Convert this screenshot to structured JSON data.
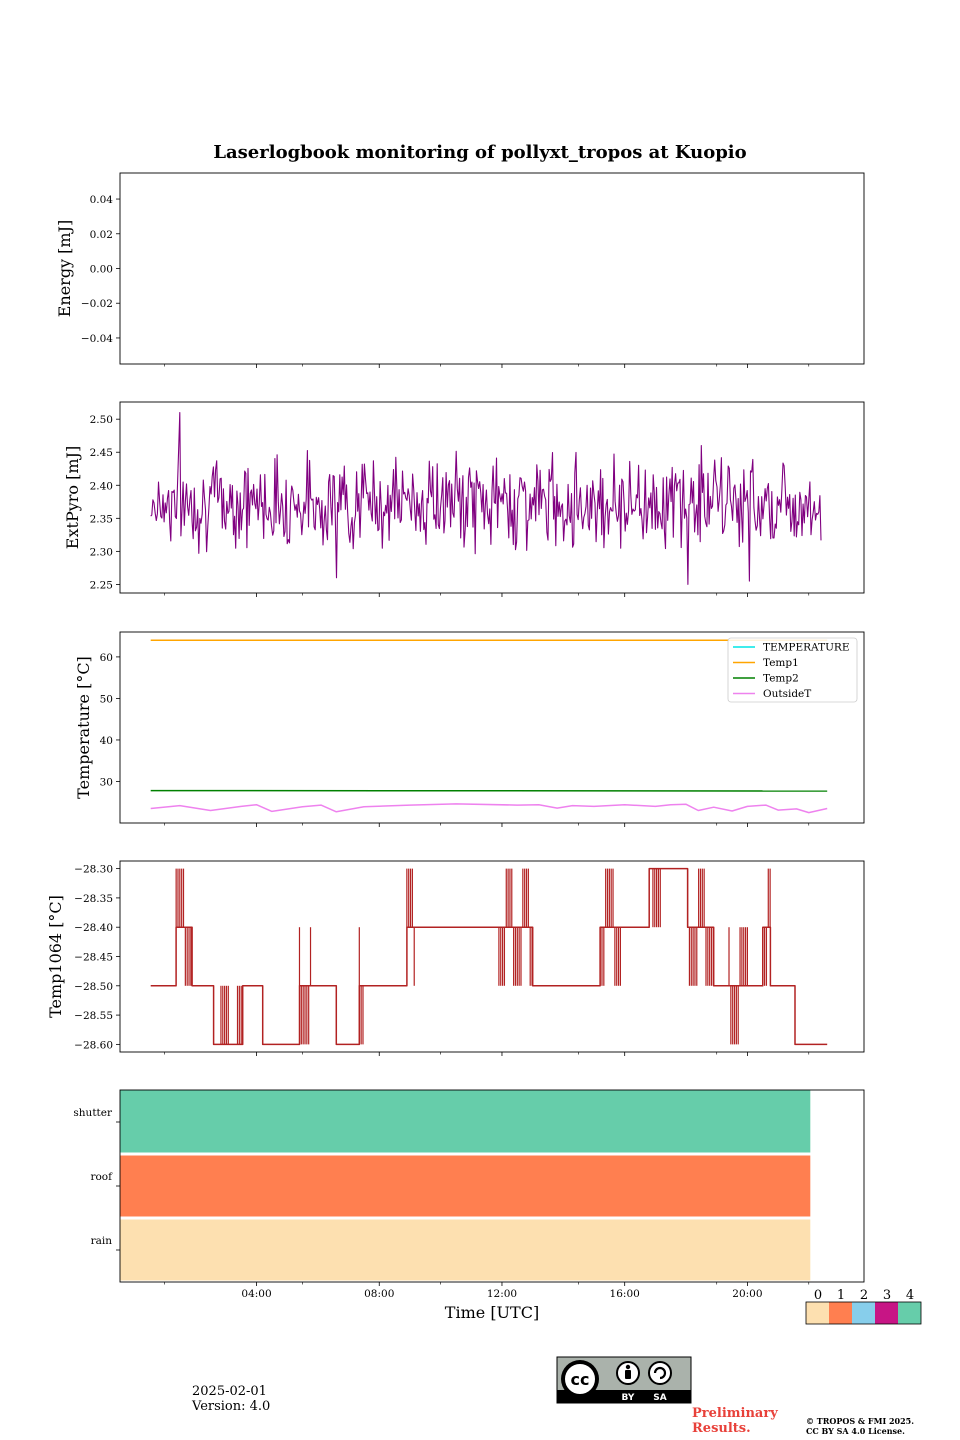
{
  "title": "Laserlogbook monitoring of pollyxt_tropos at Kuopio",
  "colors": {
    "extpyro": "#800080",
    "temperature": "#00e5e5",
    "temp1": "#ffa500",
    "temp2": "#008000",
    "outsideT": "#ee82ee",
    "temp1064": "#b22222",
    "status": [
      "#fde0b0",
      "#ff7f50",
      "#87ceeb",
      "#c71585",
      "#66cdaa"
    ]
  },
  "chart_data": [
    {
      "type": "line",
      "ylabel": "Energy [mJ]",
      "ylim": [
        -0.055,
        0.055
      ],
      "yticks": [
        0.04,
        0.02,
        0.0,
        -0.02,
        -0.04
      ],
      "ytick_labels": [
        "0.04",
        "0.02",
        "0.00",
        "−0.02",
        "−0.04"
      ],
      "series": []
    },
    {
      "type": "line",
      "ylabel": "ExtPyro [mJ]",
      "ylim": [
        2.237,
        2.526
      ],
      "yticks": [
        2.5,
        2.45,
        2.4,
        2.35,
        2.3,
        2.25
      ],
      "ytick_labels": [
        "2.50",
        "2.45",
        "2.40",
        "2.35",
        "2.30",
        "2.25"
      ],
      "x_range_hours": [
        0.55,
        22.4
      ],
      "series": [
        {
          "color_key": "extpyro",
          "mean": 2.375,
          "range": [
            2.25,
            2.51
          ],
          "samples": 600,
          "notable_points": [
            [
              1.5,
              2.51
            ],
            [
              18.05,
              2.25
            ],
            [
              6.6,
              2.26
            ],
            [
              18.5,
              2.46
            ],
            [
              20.05,
              2.255
            ]
          ]
        }
      ]
    },
    {
      "type": "line",
      "ylabel": "Temperature [°C]",
      "ylim": [
        20.0,
        66.0
      ],
      "yticks": [
        60,
        50,
        40,
        30
      ],
      "ytick_labels": [
        "60",
        "50",
        "40",
        "30"
      ],
      "x_range_hours": [
        0.55,
        22.6
      ],
      "legend": {
        "placement": "top-right",
        "entries": [
          {
            "label": "TEMPERATURE",
            "color_key": "temperature"
          },
          {
            "label": "Temp1",
            "color_key": "temp1"
          },
          {
            "label": "Temp2",
            "color_key": "temp2"
          },
          {
            "label": "OutsideT",
            "color_key": "outsideT"
          }
        ]
      },
      "series": [
        {
          "name": "Temp1",
          "color_key": "temp1",
          "x": [
            0.55,
            22.6
          ],
          "y": [
            64.0,
            64.0
          ]
        },
        {
          "name": "Temp2",
          "color_key": "temp2",
          "x": [
            0.55,
            22.6
          ],
          "y": [
            27.8,
            27.7
          ]
        },
        {
          "name": "OutsideT",
          "color_key": "outsideT",
          "x": [
            0.55,
            1.5,
            2.5,
            3.5,
            4.0,
            4.5,
            5.5,
            6.1,
            6.6,
            7.5,
            9.0,
            10.5,
            12.5,
            13.2,
            13.8,
            14.3,
            15.0,
            16.0,
            17.0,
            17.5,
            18.0,
            18.4,
            18.9,
            19.5,
            20.0,
            20.6,
            21.0,
            21.6,
            22.0,
            22.6
          ],
          "y": [
            23.5,
            24.2,
            23.0,
            24.0,
            24.4,
            22.8,
            23.9,
            24.3,
            22.7,
            23.9,
            24.3,
            24.6,
            24.3,
            24.4,
            23.6,
            24.2,
            24.0,
            24.4,
            24.0,
            24.4,
            24.5,
            23.0,
            23.8,
            22.9,
            24.0,
            24.3,
            23.1,
            23.4,
            22.5,
            23.5
          ]
        }
      ]
    },
    {
      "type": "line",
      "ylabel": "Temp1064 [°C]",
      "ylim": [
        -28.613,
        -28.287
      ],
      "yticks": [
        -28.3,
        -28.35,
        -28.4,
        -28.45,
        -28.5,
        -28.55,
        -28.6
      ],
      "ytick_labels": [
        "−28.30",
        "−28.35",
        "−28.40",
        "−28.45",
        "−28.50",
        "−28.55",
        "−28.60"
      ],
      "x_range_hours": [
        0.55,
        22.6
      ],
      "series": [
        {
          "color_key": "temp1064",
          "segments": [
            [
              0.55,
              1.38,
              -28.5
            ],
            [
              1.38,
              1.9,
              -28.4
            ],
            [
              1.9,
              2.6,
              -28.5
            ],
            [
              2.6,
              3.55,
              -28.6
            ],
            [
              3.55,
              4.2,
              -28.5
            ],
            [
              4.2,
              5.4,
              -28.6
            ],
            [
              5.4,
              5.5,
              -28.5
            ],
            [
              5.5,
              5.8,
              -28.5
            ],
            [
              5.8,
              6.6,
              -28.5
            ],
            [
              6.6,
              7.35,
              -28.6
            ],
            [
              7.35,
              8.4,
              -28.5
            ],
            [
              8.4,
              8.9,
              -28.5
            ],
            [
              8.9,
              9.15,
              -28.4
            ],
            [
              9.15,
              10.35,
              -28.4
            ],
            [
              10.35,
              11.0,
              -28.4
            ],
            [
              11.0,
              12.3,
              -28.4
            ],
            [
              12.3,
              13.0,
              -28.4
            ],
            [
              13.0,
              13.7,
              -28.5
            ],
            [
              13.7,
              15.2,
              -28.5
            ],
            [
              15.2,
              15.9,
              -28.4
            ],
            [
              15.9,
              16.8,
              -28.4
            ],
            [
              16.8,
              17.7,
              -28.3
            ],
            [
              17.7,
              18.05,
              -28.3
            ],
            [
              18.05,
              18.9,
              -28.4
            ],
            [
              18.9,
              19.4,
              -28.5
            ],
            [
              19.4,
              20.5,
              -28.5
            ],
            [
              20.5,
              20.75,
              -28.4
            ],
            [
              20.75,
              21.05,
              -28.5
            ],
            [
              21.05,
              21.55,
              -28.5
            ],
            [
              21.55,
              21.9,
              -28.6
            ],
            [
              21.9,
              22.6,
              -28.6
            ]
          ]
        }
      ]
    },
    {
      "type": "heatmap",
      "categories": [
        "shutter",
        "roof",
        "rain"
      ],
      "x_range_hours": [
        0.0,
        22.05
      ],
      "values": [
        4,
        1,
        0
      ]
    }
  ],
  "x_axis": {
    "label": "Time [UTC]",
    "range_hours": [
      -0.45,
      23.8
    ],
    "major_ticks_hours": [
      4,
      8,
      12,
      16,
      20
    ],
    "tick_labels": [
      "04:00",
      "08:00",
      "12:00",
      "16:00",
      "20:00"
    ],
    "minor_ticks_hours": [
      1,
      5.5,
      10,
      14.5,
      19,
      22
    ]
  },
  "colorbar": {
    "tick_labels": [
      "0",
      "1",
      "2",
      "3",
      "4"
    ]
  },
  "footer": {
    "date": "2025-02-01",
    "version": "Version: 4.0",
    "preliminary": [
      "Preliminary",
      "Results."
    ],
    "copyright": [
      "© TROPOS & FMI 2025.",
      "CC BY SA 4.0 License."
    ],
    "license_badge": [
      "BY",
      "SA"
    ]
  }
}
